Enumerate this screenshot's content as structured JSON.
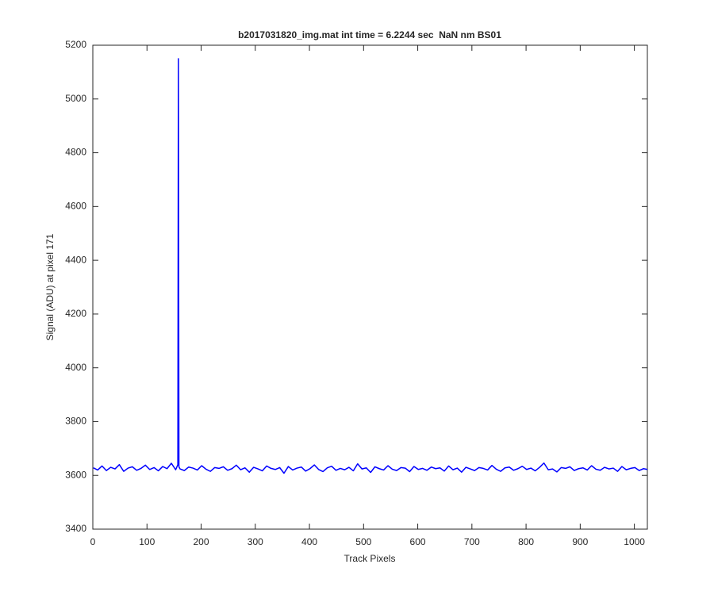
{
  "chart_data": {
    "type": "line",
    "title": "b2017031820_img.mat int time = 6.2244 sec  NaN nm BS01",
    "xlabel": "Track Pixels",
    "ylabel": "Signal (ADU) at pixel 171",
    "x": [
      1,
      9,
      17,
      25,
      33,
      41,
      49,
      57,
      65,
      73,
      81,
      89,
      97,
      105,
      113,
      121,
      129,
      137,
      145,
      153,
      157,
      158,
      159,
      161,
      169,
      177,
      185,
      193,
      201,
      209,
      217,
      225,
      233,
      241,
      249,
      257,
      265,
      273,
      281,
      289,
      297,
      305,
      313,
      321,
      329,
      337,
      345,
      353,
      361,
      369,
      377,
      385,
      393,
      401,
      409,
      417,
      425,
      433,
      441,
      449,
      457,
      465,
      473,
      481,
      489,
      497,
      505,
      513,
      521,
      529,
      537,
      545,
      553,
      561,
      569,
      577,
      585,
      593,
      601,
      609,
      617,
      625,
      633,
      641,
      649,
      657,
      665,
      673,
      681,
      689,
      697,
      705,
      713,
      721,
      729,
      737,
      745,
      753,
      761,
      769,
      777,
      785,
      793,
      801,
      809,
      817,
      825,
      833,
      841,
      849,
      857,
      865,
      873,
      881,
      889,
      897,
      905,
      913,
      921,
      929,
      937,
      945,
      953,
      961,
      969,
      977,
      985,
      993,
      1001,
      1009,
      1017,
      1024
    ],
    "series": [
      {
        "color": "#0000ff",
        "values": [
          3628,
          3620,
          3635,
          3618,
          3630,
          3624,
          3640,
          3615,
          3627,
          3632,
          3619,
          3626,
          3638,
          3622,
          3629,
          3617,
          3633,
          3625,
          3645,
          3621,
          3640,
          5150,
          3632,
          3624,
          3618,
          3631,
          3627,
          3620,
          3636,
          3623,
          3615,
          3629,
          3626,
          3632,
          3619,
          3625,
          3638,
          3621,
          3628,
          3612,
          3630,
          3624,
          3617,
          3635,
          3626,
          3622,
          3629,
          3608,
          3633,
          3620,
          3627,
          3631,
          3616,
          3625,
          3639,
          3622,
          3614,
          3628,
          3634,
          3619,
          3626,
          3621,
          3630,
          3617,
          3643,
          3624,
          3628,
          3611,
          3632,
          3625,
          3620,
          3636,
          3623,
          3618,
          3629,
          3627,
          3614,
          3633,
          3622,
          3626,
          3619,
          3631,
          3625,
          3628,
          3616,
          3635,
          3621,
          3627,
          3612,
          3630,
          3624,
          3618,
          3629,
          3626,
          3620,
          3637,
          3623,
          3615,
          3628,
          3631,
          3619,
          3625,
          3634,
          3622,
          3627,
          3617,
          3630,
          3646,
          3621,
          3624,
          3613,
          3629,
          3626,
          3632,
          3618,
          3625,
          3628,
          3620,
          3636,
          3623,
          3619,
          3630,
          3624,
          3627,
          3615,
          3633,
          3621,
          3626,
          3629,
          3618,
          3625,
          3622
        ]
      }
    ],
    "xlim": [
      0,
      1024
    ],
    "ylim": [
      3400,
      5200
    ],
    "xticks": [
      0,
      100,
      200,
      300,
      400,
      500,
      600,
      700,
      800,
      900,
      1000
    ],
    "yticks": [
      3400,
      3600,
      3800,
      4000,
      4200,
      4400,
      4600,
      4800,
      5000,
      5200
    ]
  }
}
